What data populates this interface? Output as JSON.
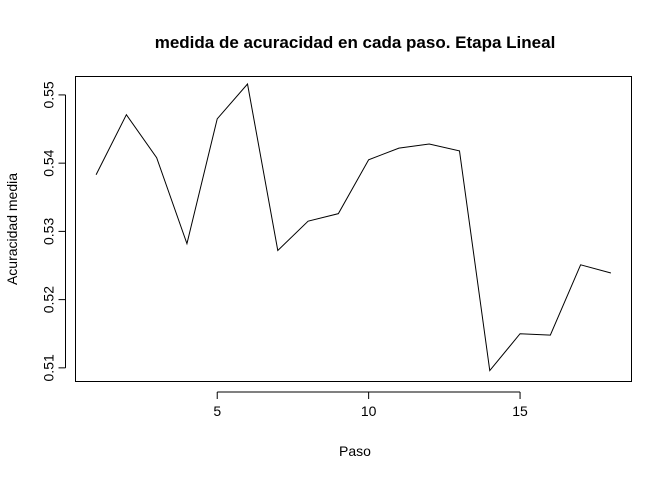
{
  "chart_data": {
    "type": "line",
    "title": "medida de acuracidad en cada paso. Etapa Lineal",
    "xlabel": "Paso",
    "ylabel": "Acuracidad media",
    "x": [
      1,
      2,
      3,
      4,
      5,
      6,
      7,
      8,
      9,
      10,
      11,
      12,
      13,
      14,
      15,
      16,
      17,
      18
    ],
    "series": [
      {
        "values": [
          0.5383,
          0.5471,
          0.5408,
          0.5282,
          0.5465,
          0.5516,
          0.5272,
          0.5315,
          0.5326,
          0.5405,
          0.5422,
          0.5428,
          0.5418,
          0.5096,
          0.515,
          0.5148,
          0.5251,
          0.5239
        ],
        "color": "#000000"
      }
    ],
    "xlim": [
      0.32,
      18.68
    ],
    "ylim": [
      0.508,
      0.5527
    ],
    "x_ticks": [
      5,
      10,
      15
    ],
    "x_tick_labels": [
      "5",
      "10",
      "15"
    ],
    "y_ticks": [
      0.51,
      0.52,
      0.53,
      0.54,
      0.55
    ],
    "y_tick_labels": [
      "0.51",
      "0.52",
      "0.53",
      "0.54",
      "0.55"
    ],
    "grid": false,
    "legend": "none"
  }
}
